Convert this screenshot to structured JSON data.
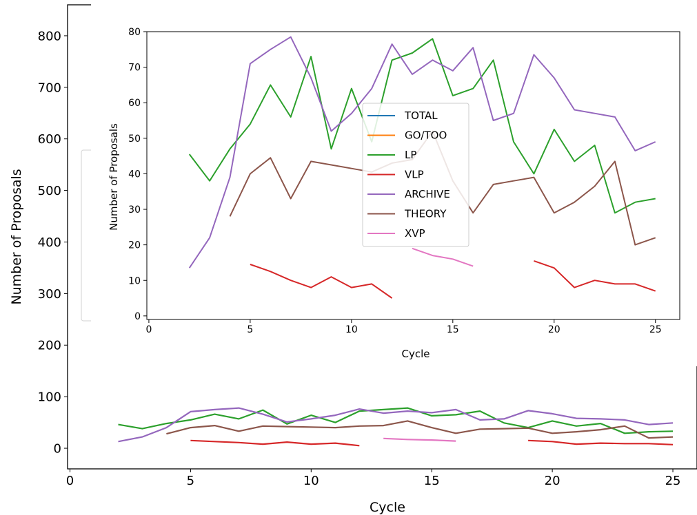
{
  "chart_data": [
    {
      "type": "line",
      "title": "",
      "xlabel": "Cycle",
      "ylabel": "Number of Proposals",
      "xlim": [
        -0.1,
        26.0
      ],
      "ylim": [
        -40,
        860
      ],
      "xticks": [
        0,
        5,
        10,
        15,
        20,
        25
      ],
      "yticks": [
        0,
        100,
        200,
        300,
        400,
        500,
        600,
        700,
        800
      ],
      "legend": "hidden behind inset",
      "series": [
        {
          "name": "TOTAL",
          "color": "#1f77b4",
          "x": [],
          "values": []
        },
        {
          "name": "GO/TOO",
          "color": "#ff7f0e",
          "x": [],
          "values": []
        },
        {
          "name": "LP",
          "color": "#2ca02c",
          "x": [
            2,
            3,
            4,
            5,
            6,
            7,
            8,
            9,
            10,
            11,
            12,
            13,
            14,
            15,
            16,
            17,
            18,
            19,
            20,
            21,
            22,
            23,
            24,
            25
          ],
          "values": [
            46,
            38,
            48,
            55,
            66,
            57,
            74,
            47,
            64,
            50,
            72,
            75,
            78,
            63,
            65,
            72,
            49,
            40,
            53,
            43,
            48,
            29,
            32,
            33
          ]
        },
        {
          "name": "VLP",
          "color": "#d62728",
          "x": [
            5,
            6,
            7,
            8,
            9,
            10,
            11,
            12,
            19,
            20,
            21,
            22,
            23,
            24,
            25
          ],
          "values": [
            15,
            13,
            11,
            8,
            12,
            8,
            10,
            5,
            15,
            13,
            8,
            10,
            9,
            9,
            7
          ]
        },
        {
          "name": "ARCHIVE",
          "color": "#9467bd",
          "x": [
            2,
            3,
            4,
            5,
            6,
            7,
            8,
            9,
            10,
            11,
            12,
            13,
            14,
            15,
            16,
            17,
            18,
            19,
            20,
            21,
            22,
            23,
            24,
            25
          ],
          "values": [
            13,
            22,
            40,
            71,
            75,
            78,
            66,
            51,
            57,
            64,
            76,
            68,
            72,
            69,
            75,
            55,
            57,
            73,
            67,
            58,
            57,
            55,
            46,
            49
          ]
        },
        {
          "name": "THEORY",
          "color": "#8c564b",
          "x": [
            4,
            5,
            6,
            7,
            8,
            9,
            10,
            11,
            12,
            13,
            14,
            15,
            16,
            17,
            18,
            19,
            20,
            21,
            22,
            23,
            24,
            25
          ],
          "values": [
            28,
            40,
            44,
            33,
            43,
            42,
            41,
            40,
            43,
            44,
            53,
            40,
            29,
            37,
            38,
            39,
            29,
            32,
            36,
            43,
            20,
            22
          ]
        },
        {
          "name": "XVP",
          "color": "#e377c2",
          "x": [
            13,
            14,
            15,
            16
          ],
          "values": [
            19,
            17,
            16,
            14
          ]
        }
      ]
    },
    {
      "type": "line",
      "title": "",
      "xlabel": "Cycle",
      "ylabel": "Number of Proposals",
      "xlim": [
        -0.1,
        26.2
      ],
      "ylim": [
        -1,
        80
      ],
      "xticks": [
        0,
        5,
        10,
        15,
        20,
        25
      ],
      "yticks": [
        0,
        10,
        20,
        30,
        40,
        50,
        60,
        70,
        80
      ],
      "legend": "center",
      "legend_entries": [
        "TOTAL",
        "GO/TOO",
        "LP",
        "VLP",
        "ARCHIVE",
        "THEORY",
        "XVP"
      ],
      "series": [
        {
          "name": "TOTAL",
          "color": "#1f77b4",
          "x": [],
          "values": []
        },
        {
          "name": "GO/TOO",
          "color": "#ff7f0e",
          "x": [],
          "values": []
        },
        {
          "name": "LP",
          "color": "#2ca02c",
          "x": [
            2,
            3,
            4,
            5,
            6,
            7,
            8,
            9,
            10,
            11,
            12,
            13,
            14,
            15,
            16,
            17,
            18,
            19,
            20,
            21,
            22,
            23,
            24,
            25
          ],
          "values": [
            45.5,
            38,
            47,
            54,
            65,
            56,
            73,
            47,
            64,
            49,
            72,
            74,
            78,
            62,
            64,
            72,
            49,
            40,
            52.5,
            43.5,
            48,
            29,
            32,
            33
          ]
        },
        {
          "name": "VLP",
          "color": "#d62728",
          "x": [
            5,
            6,
            7,
            8,
            9,
            10,
            11,
            12,
            19,
            20,
            21,
            22,
            23,
            24,
            25
          ],
          "values": [
            14.5,
            12.5,
            10,
            8,
            11,
            8,
            9,
            5,
            15.5,
            13.5,
            8,
            10,
            9,
            9,
            7
          ]
        },
        {
          "name": "ARCHIVE",
          "color": "#9467bd",
          "x": [
            2,
            3,
            4,
            5,
            6,
            7,
            8,
            9,
            10,
            11,
            12,
            13,
            14,
            15,
            16,
            17,
            18,
            19,
            20,
            21,
            22,
            23,
            24,
            25
          ],
          "values": [
            13.5,
            22,
            39,
            71,
            75,
            78.5,
            67,
            52,
            57,
            64,
            76.5,
            68,
            72,
            69,
            75.5,
            55,
            57,
            73.5,
            67,
            58,
            57,
            56,
            46.5,
            49
          ]
        },
        {
          "name": "THEORY",
          "color": "#8c564b",
          "x": [
            4,
            5,
            6,
            7,
            8,
            9,
            10,
            11,
            12,
            13,
            14,
            15,
            16,
            17,
            18,
            19,
            20,
            21,
            22,
            23,
            24,
            25
          ],
          "values": [
            28,
            40,
            44.5,
            33,
            43.5,
            42.5,
            41.5,
            40.5,
            43,
            44,
            52,
            38,
            29,
            37,
            38,
            39,
            29,
            32,
            36.5,
            43.5,
            20,
            22
          ]
        },
        {
          "name": "XVP",
          "color": "#e377c2",
          "x": [
            13,
            14,
            15,
            16
          ],
          "values": [
            19,
            17,
            16,
            14
          ]
        }
      ]
    }
  ]
}
